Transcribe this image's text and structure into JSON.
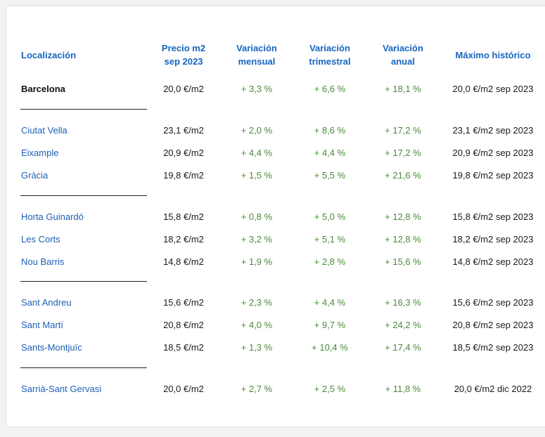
{
  "colors": {
    "header": "#1565c0",
    "link": "#1e5fb4",
    "positive": "#4a8a3a",
    "text": "#1a1a1a"
  },
  "table": {
    "headers": {
      "loc": "Localización",
      "precio_1": "Precio m2",
      "precio_2": "sep 2023",
      "mensual_1": "Variación",
      "mensual_2": "mensual",
      "trimestral_1": "Variación",
      "trimestral_2": "trimestral",
      "anual_1": "Variación",
      "anual_2": "anual",
      "maximo": "Máximo histórico"
    },
    "rows": [
      {
        "loc": "Barcelona",
        "precio": "20,0 €/m2",
        "mensual": "+ 3,3 %",
        "trimestral": "+ 6,6 %",
        "anual": "+ 18,1 %",
        "maximo": "20,0 €/m2 sep 2023"
      },
      {
        "loc": "Ciutat Vella",
        "precio": "23,1 €/m2",
        "mensual": "+ 2,0 %",
        "trimestral": "+ 8,6 %",
        "anual": "+ 17,2 %",
        "maximo": "23,1 €/m2 sep 2023"
      },
      {
        "loc": "Eixample",
        "precio": "20,9 €/m2",
        "mensual": "+ 4,4 %",
        "trimestral": "+ 4,4 %",
        "anual": "+ 17,2 %",
        "maximo": "20,9 €/m2 sep 2023"
      },
      {
        "loc": "Gràcia",
        "precio": "19,8 €/m2",
        "mensual": "+ 1,5 %",
        "trimestral": "+ 5,5 %",
        "anual": "+ 21,6 %",
        "maximo": "19,8 €/m2 sep 2023"
      },
      {
        "loc": "Horta Guinardó",
        "precio": "15,8 €/m2",
        "mensual": "+ 0,8 %",
        "trimestral": "+ 5,0 %",
        "anual": "+ 12,8 %",
        "maximo": "15,8 €/m2 sep 2023"
      },
      {
        "loc": "Les Corts",
        "precio": "18,2 €/m2",
        "mensual": "+ 3,2 %",
        "trimestral": "+ 5,1 %",
        "anual": "+ 12,8 %",
        "maximo": "18,2 €/m2 sep 2023"
      },
      {
        "loc": "Nou Barris",
        "precio": "14,8 €/m2",
        "mensual": "+ 1,9 %",
        "trimestral": "+ 2,8 %",
        "anual": "+ 15,6 %",
        "maximo": "14,8 €/m2 sep 2023"
      },
      {
        "loc": "Sant Andreu",
        "precio": "15,6 €/m2",
        "mensual": "+ 2,3 %",
        "trimestral": "+ 4,4 %",
        "anual": "+ 16,3 %",
        "maximo": "15,6 €/m2 sep 2023"
      },
      {
        "loc": "Sant Martí",
        "precio": "20,8 €/m2",
        "mensual": "+ 4,0 %",
        "trimestral": "+ 9,7 %",
        "anual": "+ 24,2 %",
        "maximo": "20,8 €/m2 sep 2023"
      },
      {
        "loc": "Sants-Montjuïc",
        "precio": "18,5 €/m2",
        "mensual": "+ 1,3 %",
        "trimestral": "+ 10,4 %",
        "anual": "+ 17,4 %",
        "maximo": "18,5 €/m2 sep 2023"
      },
      {
        "loc": "Sarrià-Sant Gervasi",
        "precio": "20,0 €/m2",
        "mensual": "+ 2,7 %",
        "trimestral": "+ 2,5 %",
        "anual": "+ 11,8 %",
        "maximo": "20,0 €/m2 dic 2022"
      }
    ]
  }
}
